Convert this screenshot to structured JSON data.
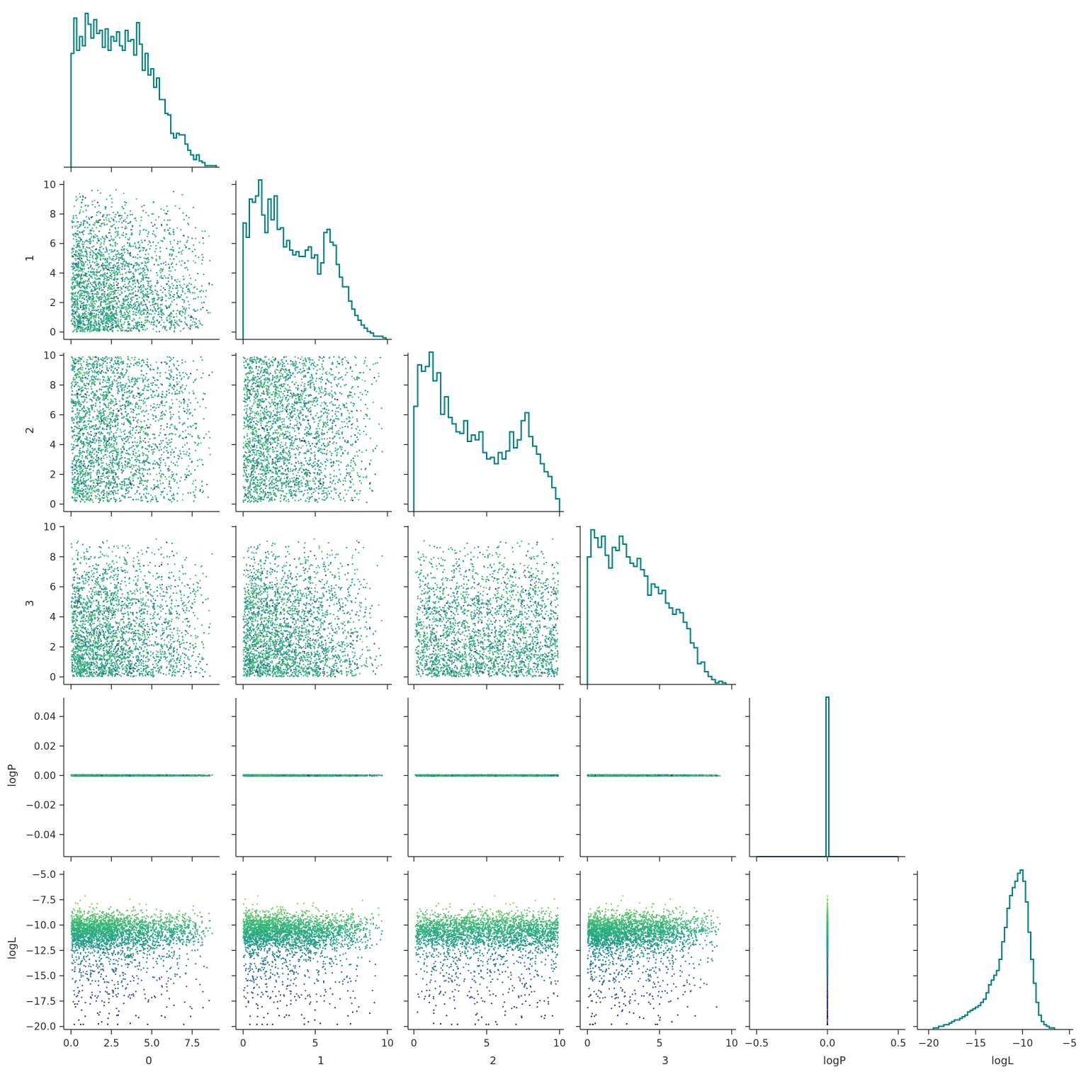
{
  "chart_data": {
    "type": "pairplot-corner",
    "variables": [
      "0",
      "1",
      "2",
      "3",
      "logP",
      "logL"
    ],
    "diag_type": "step-histogram",
    "offdiag_type": "scatter",
    "color_by": "logL",
    "colormap": "viridis",
    "hist_color": "#008080",
    "axis_color": "#262626",
    "grid": false,
    "axes": {
      "x": [
        {
          "var": "0",
          "label": "0",
          "lim": [
            -0.45,
            9.2
          ],
          "ticks": [
            0,
            2.5,
            5.0,
            7.5
          ],
          "tick_labels": [
            "0.0",
            "2.5",
            "5.0",
            "7.5"
          ]
        },
        {
          "var": "1",
          "label": "1",
          "lim": [
            -0.5,
            10.3
          ],
          "ticks": [
            0,
            5,
            10
          ],
          "tick_labels": [
            "0",
            "5",
            "10"
          ]
        },
        {
          "var": "2",
          "label": "2",
          "lim": [
            -0.4,
            10.3
          ],
          "ticks": [
            0,
            5,
            10
          ],
          "tick_labels": [
            "0",
            "5",
            "10"
          ]
        },
        {
          "var": "3",
          "label": "3",
          "lim": [
            -0.5,
            10.3
          ],
          "ticks": [
            0,
            5,
            10
          ],
          "tick_labels": [
            "0",
            "5",
            "10"
          ]
        },
        {
          "var": "logP",
          "label": "logP",
          "lim": [
            -0.55,
            0.55
          ],
          "ticks": [
            -0.5,
            0.0,
            0.5
          ],
          "tick_labels": [
            "−0.5",
            "0.0",
            "0.5"
          ]
        },
        {
          "var": "logL",
          "label": "logL",
          "lim": [
            -21.2,
            -4.6
          ],
          "ticks": [
            -20,
            -15,
            -10,
            -5
          ],
          "tick_labels": [
            "−20",
            "−15",
            "−10",
            "−5"
          ]
        }
      ],
      "y": [
        {
          "var": "0",
          "label": "",
          "lim": null,
          "ticks": [],
          "tick_labels": []
        },
        {
          "var": "1",
          "label": "1",
          "lim": [
            -0.5,
            10.5
          ],
          "ticks": [
            0,
            2,
            4,
            6,
            8,
            10
          ],
          "tick_labels": [
            "0",
            "2",
            "4",
            "6",
            "8",
            "10"
          ]
        },
        {
          "var": "2",
          "label": "2",
          "lim": [
            -0.5,
            10.4
          ],
          "ticks": [
            0,
            2,
            4,
            6,
            8,
            10
          ],
          "tick_labels": [
            "0",
            "2",
            "4",
            "6",
            "8",
            "10"
          ]
        },
        {
          "var": "3",
          "label": "3",
          "lim": [
            -0.5,
            10.3
          ],
          "ticks": [
            0,
            2,
            4,
            6,
            8,
            10
          ],
          "tick_labels": [
            "0",
            "2",
            "4",
            "6",
            "8",
            "10"
          ]
        },
        {
          "var": "logP",
          "label": "logP",
          "lim": [
            -0.055,
            0.055
          ],
          "ticks": [
            -0.04,
            -0.02,
            0.0,
            0.02,
            0.04
          ],
          "tick_labels": [
            "−0.04",
            "−0.02",
            "0.00",
            "0.02",
            "0.04"
          ]
        },
        {
          "var": "logL",
          "label": "logL",
          "lim": [
            -20.3,
            -4.3
          ],
          "ticks": [
            -20,
            -17.5,
            -15,
            -12.5,
            -10,
            -7.5,
            -5
          ],
          "tick_labels": [
            "−20.0",
            "−17.5",
            "−15.0",
            "−12.5",
            "−10.0",
            "−7.5",
            "−5.0"
          ]
        }
      ]
    },
    "histograms": [
      {
        "var": "0",
        "lo": 0.0,
        "hi": 9.0,
        "max": 1.0,
        "values": [
          0.74,
          0.97,
          0.76,
          0.85,
          0.79,
          1.0,
          0.93,
          0.84,
          0.96,
          0.87,
          0.89,
          0.78,
          0.9,
          0.76,
          0.85,
          0.82,
          0.88,
          0.79,
          0.76,
          0.89,
          0.82,
          0.83,
          0.73,
          0.94,
          0.8,
          0.63,
          0.74,
          0.6,
          0.64,
          0.52,
          0.58,
          0.44,
          0.44,
          0.35,
          0.34,
          0.22,
          0.19,
          0.22,
          0.21,
          0.21,
          0.15,
          0.11,
          0.08,
          0.05,
          0.08,
          0.04,
          0.03,
          0.01,
          0.01,
          0.01,
          0.01
        ]
      },
      {
        "var": "1",
        "lo": 0.0,
        "hi": 9.9,
        "max": 1.0,
        "values": [
          0.73,
          0.64,
          0.88,
          0.86,
          0.9,
          1.0,
          0.78,
          0.67,
          0.88,
          0.75,
          0.9,
          0.69,
          0.7,
          0.58,
          0.62,
          0.56,
          0.53,
          0.55,
          0.52,
          0.52,
          0.56,
          0.58,
          0.51,
          0.53,
          0.41,
          0.48,
          0.67,
          0.69,
          0.61,
          0.59,
          0.47,
          0.39,
          0.33,
          0.33,
          0.24,
          0.19,
          0.15,
          0.12,
          0.09,
          0.07,
          0.05,
          0.04,
          0.02,
          0.02,
          0.02,
          0.01
        ]
      },
      {
        "var": "2",
        "lo": 0.0,
        "hi": 10.0,
        "max": 1.0,
        "values": [
          0.66,
          0.92,
          0.88,
          0.91,
          1.0,
          0.82,
          0.87,
          0.61,
          0.72,
          0.59,
          0.55,
          0.5,
          0.49,
          0.57,
          0.44,
          0.48,
          0.45,
          0.5,
          0.37,
          0.33,
          0.34,
          0.3,
          0.37,
          0.33,
          0.38,
          0.5,
          0.4,
          0.45,
          0.57,
          0.62,
          0.47,
          0.41,
          0.36,
          0.3,
          0.25,
          0.22,
          0.15,
          0.08
        ]
      },
      {
        "var": "3",
        "lo": 0.0,
        "hi": 9.6,
        "max": 1.0,
        "values": [
          0.8,
          0.97,
          0.92,
          0.86,
          0.93,
          0.81,
          0.73,
          0.86,
          0.84,
          0.93,
          0.88,
          0.8,
          0.76,
          0.74,
          0.79,
          0.72,
          0.68,
          0.56,
          0.63,
          0.61,
          0.57,
          0.59,
          0.51,
          0.48,
          0.44,
          0.47,
          0.45,
          0.39,
          0.35,
          0.26,
          0.23,
          0.13,
          0.14,
          0.08,
          0.05,
          0.03,
          0.01,
          0.02,
          0.01
        ]
      },
      {
        "var": "logP",
        "lo": -0.5,
        "hi": 0.5,
        "max": 1.0,
        "spike_at": 0.0,
        "spike_width": 0.02
      },
      {
        "var": "logL",
        "lo": -19.5,
        "hi": -6.6,
        "max": 1.0,
        "values": [
          0.01,
          0.01,
          0.02,
          0.02,
          0.03,
          0.03,
          0.04,
          0.05,
          0.06,
          0.06,
          0.07,
          0.08,
          0.09,
          0.11,
          0.12,
          0.13,
          0.14,
          0.15,
          0.17,
          0.19,
          0.23,
          0.28,
          0.31,
          0.34,
          0.37,
          0.44,
          0.55,
          0.64,
          0.76,
          0.84,
          0.89,
          0.93,
          0.98,
          1.0,
          0.93,
          0.8,
          0.61,
          0.44,
          0.29,
          0.17,
          0.09,
          0.05,
          0.03,
          0.02,
          0.01,
          0.01
        ]
      }
    ],
    "scatter_samples": {
      "count_per_panel": 2600,
      "x": {
        "0": "triangular-decreasing 0..9",
        "1": "triangular-decreasing 0..9.9",
        "2": "uniform 0..10",
        "3": "triangular-decreasing 0..9.6",
        "logP": "constant 0.0"
      },
      "y": {
        "1": "triangular-decreasing 0..9.9",
        "2": "uniform 0..10",
        "3": "triangular-decreasing 0..9.6",
        "logP": "constant 0.0",
        "logL": "peak -10.5 with tail to -19.8, max -5.1"
      }
    }
  }
}
